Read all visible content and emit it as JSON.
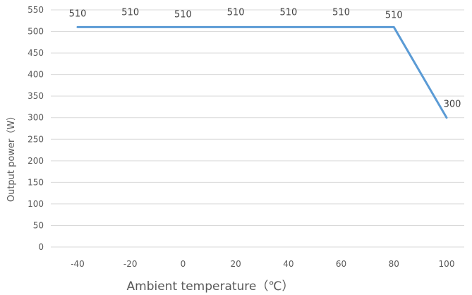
{
  "chart_data": {
    "type": "line",
    "xlabel": "Ambient temperature（℃）",
    "ylabel": "Output power（W）",
    "categories": [
      "-40",
      "-20",
      "0",
      "20",
      "40",
      "60",
      "80",
      "100"
    ],
    "series": [
      {
        "values": [
          510,
          510,
          510,
          510,
          510,
          510,
          510,
          300
        ]
      }
    ],
    "data_labels": [
      "510",
      "510",
      "510",
      "510",
      "510",
      "510",
      "510",
      "300"
    ],
    "yticks": [
      "0",
      "50",
      "100",
      "150",
      "200",
      "250",
      "300",
      "350",
      "400",
      "450",
      "500",
      "550"
    ],
    "ylim": [
      0,
      550
    ],
    "grid": true,
    "legend": "none",
    "colors": {
      "series": "#5b9bd5",
      "grid": "#d9d9d9",
      "text": "#595959"
    }
  }
}
